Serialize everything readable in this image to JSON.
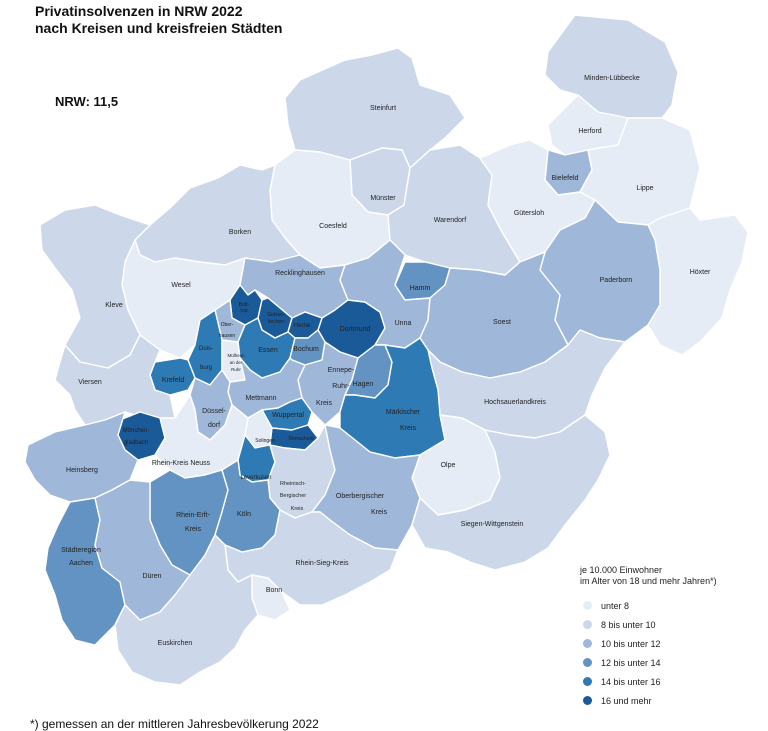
{
  "title_line1": "Privatinsolvenzen in NRW 2022",
  "title_line2": "nach Kreisen und kreisfreien Städten",
  "nrw_value": "NRW: 11,5",
  "footnote": "*) gemessen an der mittleren Jahresbevölkerung 2022",
  "legend": {
    "heading_line1": "je 10.000 Einwohner",
    "heading_line2": "im Alter von 18 und mehr Jahren*)",
    "classes": [
      {
        "label": "unter 8",
        "color": "#e6ecf6"
      },
      {
        "label": "8 bis unter 10",
        "color": "#ccd8ea"
      },
      {
        "label": "10 bis unter 12",
        "color": "#9fb8d9"
      },
      {
        "label": "12 bis unter 14",
        "color": "#6393c3"
      },
      {
        "label": "14 bis unter 16",
        "color": "#2e7ab4"
      },
      {
        "label": "16 und mehr",
        "color": "#1a5a99"
      }
    ]
  },
  "labels": {
    "minden": "Minden-Lübbecke",
    "steinfurt": "Steinfurt",
    "herford": "Herford",
    "bielefeld": "Bielefeld",
    "lippe": "Lippe",
    "muenster": "Münster",
    "coesfeld": "Coesfeld",
    "warendorf": "Warendorf",
    "guetersloh": "Gütersloh",
    "borken": "Borken",
    "hoexter": "Höxter",
    "paderborn": "Paderborn",
    "wesel": "Wesel",
    "recklinghausen": "Recklinghausen",
    "hamm": "Hamm",
    "kleve": "Kleve",
    "bottrop_1": "Bott-",
    "bottrop_2": "rop",
    "gelsenkirchen_1": "Gelsen-",
    "gelsenkirchen_2": "kirchen",
    "dortmund": "Dortmund",
    "unna": "Unna",
    "soest": "Soest",
    "oberhausen_1": "Ober-",
    "oberhausen_2": "hausen",
    "herne": "Herne",
    "duisburg_1": "Duis-",
    "duisburg_2": "burg",
    "essen": "Essen",
    "bochum": "Bochum",
    "muelheim_1": "Mülheim",
    "muelheim_2": "an der",
    "muelheim_3": "Ruhr",
    "krefeld": "Krefeld",
    "viersen": "Viersen",
    "enneperuhr_1": "Ennepe-",
    "enneperuhr_2": "Ruhr-",
    "enneperuhr_3": "Kreis",
    "hagen": "Hagen",
    "hochsauerland": "Hochsauerlandkreis",
    "mettmann": "Mettmann",
    "duesseldorf_1": "Düssel-",
    "duesseldorf_2": "dorf",
    "wuppertal": "Wuppertal",
    "maerkischer_1": "Märkischer",
    "maerkischer_2": "Kreis",
    "mgladbach_1": "Mönchen-",
    "mgladbach_2": "gladbach",
    "solingen": "Solingen",
    "remscheid": "Remscheid",
    "rheinkreisneuss": "Rhein-Kreis Neuss",
    "olpe": "Olpe",
    "heinsberg": "Heinsberg",
    "leverkusen": "Leverkusen",
    "rheinberg_1": "Rheinisch-",
    "rheinberg_2": "Bergischer",
    "rheinberg_3": "Kreis",
    "oberberg_1": "Oberbergischer",
    "oberberg_2": "Kreis",
    "rheinerft_1": "Rhein-Erft-",
    "rheinerft_2": "Kreis",
    "koeln": "Köln",
    "siegen": "Siegen-Wittgenstein",
    "aachen_1": "Städteregion",
    "aachen_2": "Aachen",
    "dueren": "Düren",
    "rheinsieg": "Rhein-Sieg-Kreis",
    "bonn": "Bonn",
    "euskirchen": "Euskirchen"
  },
  "region_classes": {
    "minden": "8 bis unter 10",
    "steinfurt": "8 bis unter 10",
    "herford": "unter 8",
    "bielefeld": "10 bis unter 12",
    "lippe": "unter 8",
    "muenster": "8 bis unter 10",
    "coesfeld": "unter 8",
    "warendorf": "8 bis unter 10",
    "guetersloh": "unter 8",
    "borken": "8 bis unter 10",
    "hoexter": "unter 8",
    "paderborn": "10 bis unter 12",
    "wesel": "unter 8",
    "recklinghausen": "10 bis unter 12",
    "hamm": "12 bis unter 14",
    "kleve": "8 bis unter 10",
    "bottrop": "16 und mehr",
    "gelsenkirchen": "16 und mehr",
    "dortmund": "16 und mehr",
    "unna": "10 bis unter 12",
    "soest": "10 bis unter 12",
    "oberhausen": "10 bis unter 12",
    "herne": "16 und mehr",
    "duisburg": "14 bis unter 16",
    "essen": "14 bis unter 16",
    "bochum": "12 bis unter 14",
    "muelheim": "unter 8",
    "krefeld": "14 bis unter 16",
    "viersen": "8 bis unter 10",
    "enneperuhr": "10 bis unter 12",
    "hagen": "12 bis unter 14",
    "hochsauerland": "8 bis unter 10",
    "mettmann": "10 bis unter 12",
    "duesseldorf": "10 bis unter 12",
    "wuppertal": "14 bis unter 16",
    "maerkischer": "14 bis unter 16",
    "mgladbach": "16 und mehr",
    "solingen": "unter 8",
    "remscheid": "16 und mehr",
    "rheinkreisneuss": "unter 8",
    "olpe": "unter 8",
    "heinsberg": "10 bis unter 12",
    "leverkusen": "14 bis unter 16",
    "rheinberg": "8 bis unter 10",
    "oberberg": "10 bis unter 12",
    "rheinerft": "12 bis unter 14",
    "koeln": "12 bis unter 14",
    "siegen": "8 bis unter 10",
    "aachen": "12 bis unter 14",
    "dueren": "10 bis unter 12",
    "rheinsieg": "8 bis unter 10",
    "bonn": "unter 8",
    "euskirchen": "8 bis unter 10"
  }
}
